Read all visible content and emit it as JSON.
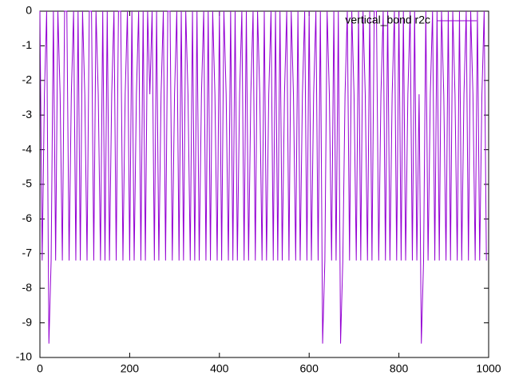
{
  "chart_data": {
    "type": "line",
    "x": [
      0,
      5,
      10,
      15,
      20,
      25,
      30,
      35,
      40,
      45,
      50,
      55,
      60,
      65,
      70,
      75,
      80,
      85,
      90,
      95,
      100,
      105,
      110,
      115,
      120,
      125,
      130,
      135,
      140,
      145,
      150,
      155,
      160,
      165,
      170,
      175,
      180,
      185,
      190,
      195,
      200,
      205,
      210,
      215,
      220,
      225,
      230,
      235,
      240,
      245,
      250,
      255,
      260,
      265,
      270,
      275,
      280,
      285,
      290,
      295,
      300,
      305,
      310,
      315,
      320,
      325,
      330,
      335,
      340,
      345,
      350,
      355,
      360,
      365,
      370,
      375,
      380,
      385,
      390,
      395,
      400,
      405,
      410,
      415,
      420,
      425,
      430,
      435,
      440,
      445,
      450,
      455,
      460,
      465,
      470,
      475,
      480,
      485,
      490,
      495,
      500,
      505,
      510,
      515,
      520,
      525,
      530,
      535,
      540,
      545,
      550,
      555,
      560,
      565,
      570,
      575,
      580,
      585,
      590,
      595,
      600,
      605,
      610,
      615,
      620,
      625,
      630,
      635,
      640,
      645,
      650,
      655,
      660,
      665,
      670,
      675,
      680,
      685,
      690,
      695,
      700,
      705,
      710,
      715,
      720,
      725,
      730,
      735,
      740,
      745,
      750,
      755,
      760,
      765,
      770,
      775,
      780,
      785,
      790,
      795,
      800,
      805,
      810,
      815,
      820,
      825,
      830,
      835,
      840,
      845,
      850,
      855,
      860,
      865,
      870,
      875,
      880,
      885,
      890,
      895,
      900,
      905,
      910,
      915,
      920,
      925,
      930,
      935,
      940,
      945,
      950,
      955,
      960,
      965,
      970,
      975,
      980,
      985,
      990,
      995
    ],
    "series": [
      {
        "name": "vertical_bond r2c",
        "color": "#9400d3",
        "values": [
          0,
          -7.2,
          -2.4,
          0,
          -9.6,
          -7.2,
          0,
          -7.2,
          0,
          -2.4,
          -7.2,
          0,
          0,
          -7.2,
          -2.4,
          0,
          -7.2,
          0,
          -7.2,
          0,
          -2.4,
          -7.2,
          0,
          0,
          -7.2,
          0,
          -2.4,
          -7.2,
          0,
          -7.2,
          0,
          -7.2,
          -2.4,
          0,
          -7.2,
          0,
          0,
          -7.2,
          -2.4,
          0,
          -7.2,
          0,
          -7.2,
          -2.4,
          0,
          -7.2,
          0,
          -7.2,
          0,
          -2.4,
          0,
          -7.2,
          0,
          -7.2,
          -2.4,
          0,
          -7.2,
          0,
          0,
          -7.2,
          -2.4,
          0,
          -7.2,
          0,
          -7.2,
          0,
          -2.4,
          -7.2,
          0,
          -7.2,
          0,
          -7.2,
          -2.4,
          0,
          -7.2,
          0,
          -7.2,
          0,
          -2.4,
          -7.2,
          0,
          -7.2,
          0,
          -2.4,
          -7.2,
          0,
          -7.2,
          0,
          -7.2,
          -2.4,
          0,
          -7.2,
          0,
          -7.2,
          -2.4,
          0,
          -7.2,
          0,
          -2.4,
          -7.2,
          0,
          -7.2,
          -2.4,
          0,
          -7.2,
          0,
          -7.2,
          0,
          -7.2,
          -2.4,
          0,
          -7.2,
          0,
          -2.4,
          -7.2,
          0,
          -7.2,
          -2.4,
          0,
          -7.2,
          0,
          -7.2,
          -2.4,
          0,
          -7.2,
          0,
          -9.6,
          -7.2,
          0,
          -2.4,
          -7.2,
          0,
          -7.2,
          0,
          -9.6,
          -7.2,
          -2.4,
          0,
          -7.2,
          0,
          -2.4,
          -7.2,
          0,
          -7.2,
          0,
          -2.4,
          -7.2,
          0,
          -7.2,
          0,
          0,
          -7.2,
          -2.4,
          0,
          -7.2,
          0,
          -7.2,
          -2.4,
          0,
          -7.2,
          0,
          -7.2,
          0,
          -7.2,
          -2.4,
          0,
          -7.2,
          0,
          -7.2,
          -2.4,
          -9.6,
          -7.2,
          0,
          -7.2,
          -2.4,
          0,
          -7.2,
          0,
          -7.2,
          0,
          -2.4,
          -7.2,
          0,
          -7.2,
          0,
          -2.4,
          -7.2,
          0,
          -7.2,
          -2.4,
          0,
          -7.2,
          0,
          -2.4,
          -7.2,
          0,
          -7.2,
          -2.4,
          0,
          -7.2
        ]
      }
    ],
    "xlim": [
      0,
      1000
    ],
    "xticks": [
      0,
      200,
      400,
      600,
      800,
      1000
    ],
    "ylim": [
      -10,
      0
    ],
    "yticks": [
      0,
      -1,
      -2,
      -3,
      -4,
      -5,
      -6,
      -7,
      -8,
      -9,
      -10
    ],
    "legend": "top right"
  }
}
